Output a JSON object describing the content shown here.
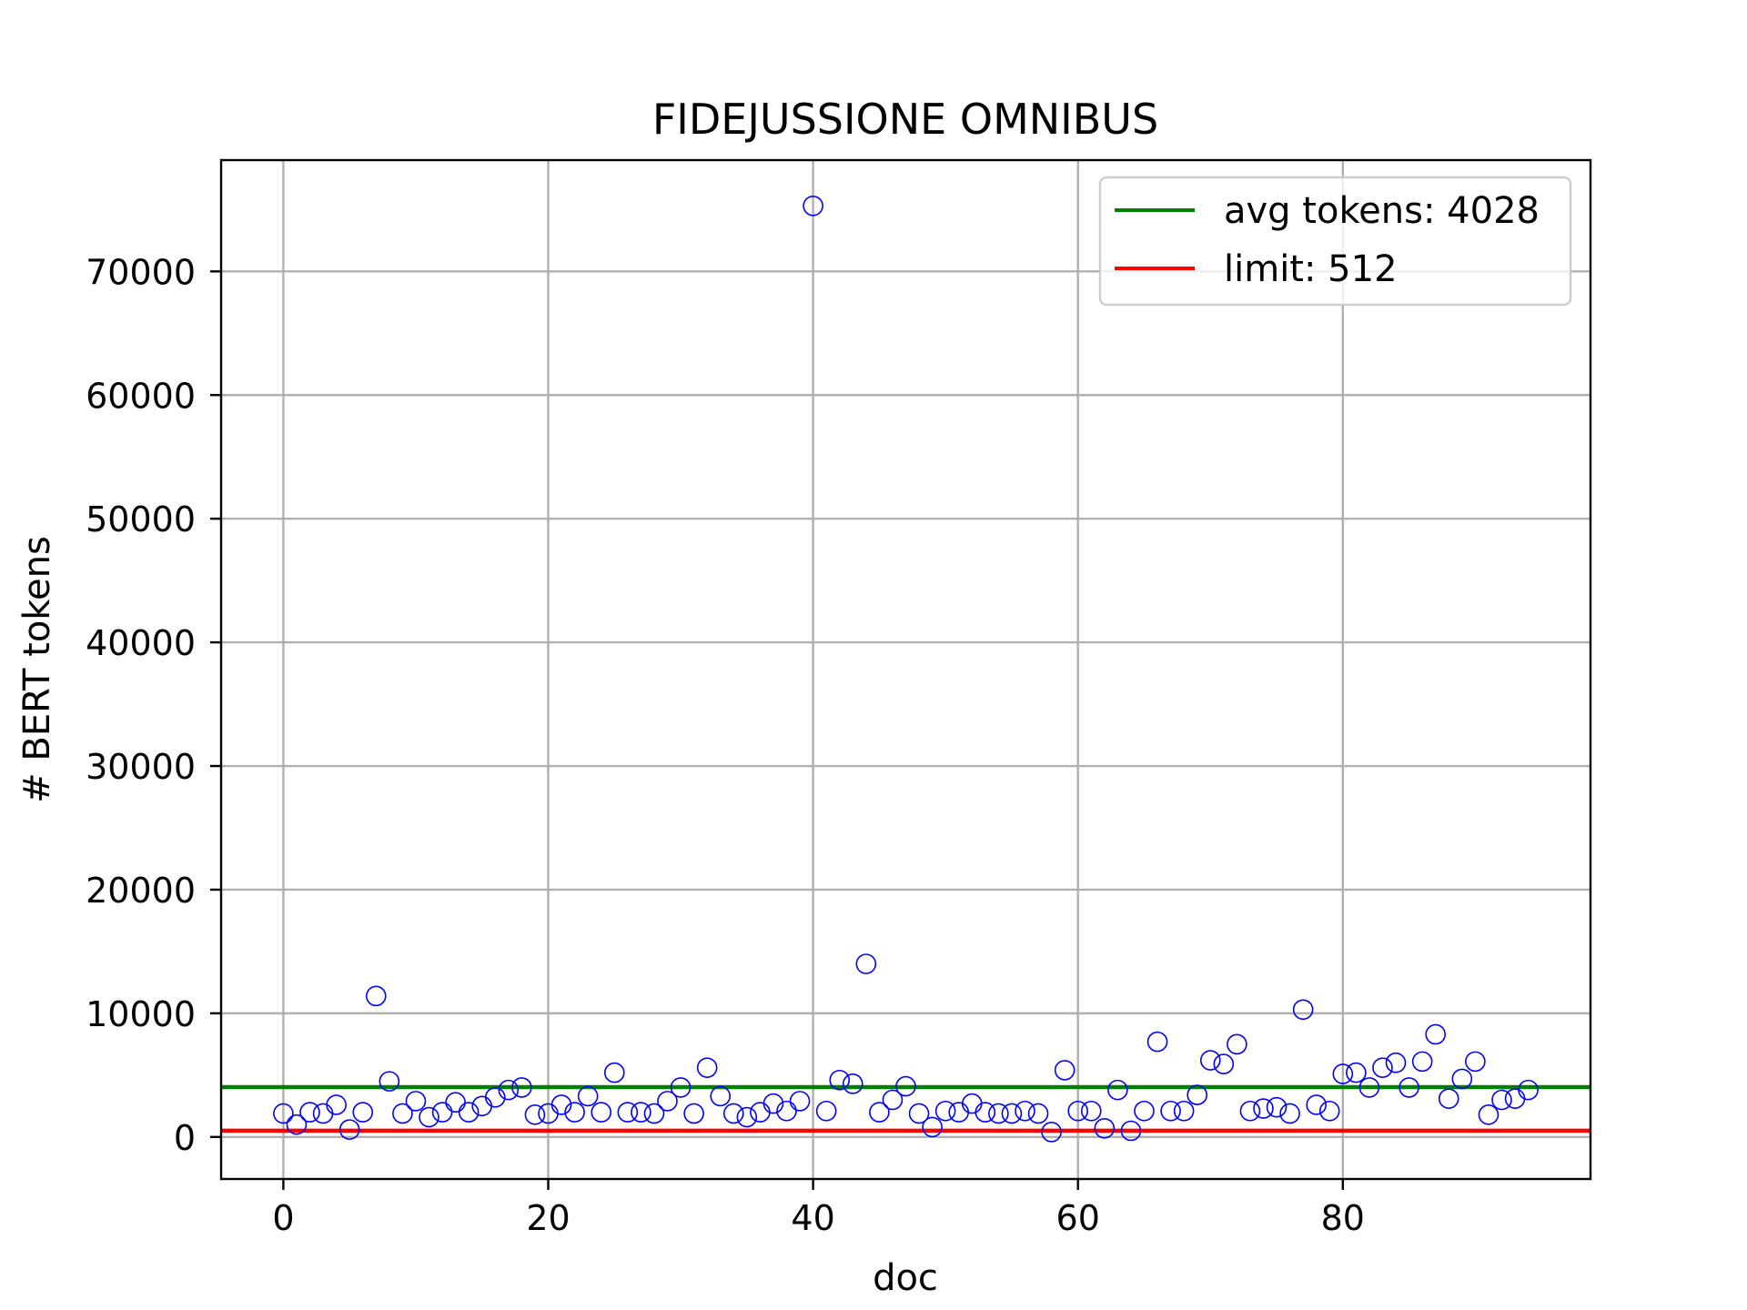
{
  "chart_data": {
    "type": "scatter",
    "title": "FIDEJUSSIONE OMNIBUS",
    "xlabel": "doc",
    "ylabel": "# BERT tokens",
    "xlim": [
      -4.7,
      98.7
    ],
    "ylim": [
      -3400,
      79000
    ],
    "xticks": [
      0,
      20,
      40,
      60,
      80
    ],
    "yticks": [
      0,
      10000,
      20000,
      30000,
      40000,
      50000,
      60000,
      70000
    ],
    "grid": true,
    "legend_position": "top-right",
    "series": [
      {
        "kind": "points",
        "color": "#0000ff",
        "x": [
          0,
          1,
          2,
          3,
          4,
          5,
          6,
          7,
          8,
          9,
          10,
          11,
          12,
          13,
          14,
          15,
          16,
          17,
          18,
          19,
          20,
          21,
          22,
          23,
          24,
          25,
          26,
          27,
          28,
          29,
          30,
          31,
          32,
          33,
          34,
          35,
          36,
          37,
          38,
          39,
          40,
          41,
          42,
          43,
          44,
          45,
          46,
          47,
          48,
          49,
          50,
          51,
          52,
          53,
          54,
          55,
          56,
          57,
          58,
          59,
          60,
          61,
          62,
          63,
          64,
          65,
          66,
          67,
          68,
          69,
          70,
          71,
          72,
          73,
          74,
          75,
          76,
          77,
          78,
          79,
          80,
          81,
          82,
          83,
          84,
          85,
          86,
          87,
          88,
          89,
          90,
          91,
          92,
          93,
          94
        ],
        "y": [
          1900,
          1000,
          2000,
          1900,
          2600,
          600,
          2000,
          11400,
          4500,
          1900,
          2900,
          1600,
          2000,
          2800,
          2000,
          2500,
          3200,
          3800,
          4000,
          1800,
          1900,
          2600,
          2000,
          3300,
          2000,
          5200,
          2000,
          2000,
          1900,
          2900,
          4000,
          1900,
          5600,
          3300,
          1900,
          1600,
          2000,
          2700,
          2100,
          2900,
          75300,
          2100,
          4600,
          4300,
          14000,
          2000,
          3000,
          4100,
          1900,
          800,
          2100,
          2000,
          2700,
          2000,
          1900,
          1900,
          2100,
          1900,
          400,
          5400,
          2100,
          2100,
          700,
          3800,
          500,
          2100,
          7700,
          2100,
          2100,
          3400,
          6200,
          5900,
          7500,
          2100,
          2300,
          2400,
          1900,
          10300,
          2600,
          2100,
          5100,
          5200,
          4000,
          5600,
          6000,
          4000,
          6100,
          8300,
          3100,
          4700,
          6100,
          1800,
          3000,
          3100,
          3800
        ]
      },
      {
        "kind": "hline",
        "name": "avg tokens: 4028",
        "color": "#008000",
        "y": 4028
      },
      {
        "kind": "hline",
        "name": "limit: 512",
        "color": "#ff0000",
        "y": 512
      }
    ]
  }
}
